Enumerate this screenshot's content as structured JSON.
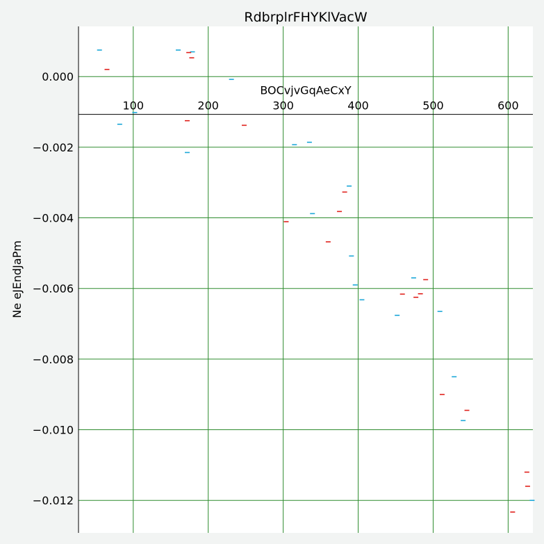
{
  "chart_data": {
    "type": "scatter",
    "title": "RdbrplrFHYKlVacW",
    "xlabel": "BOCvjvGqAeCxY",
    "ylabel": "Ne eJEndJaPm",
    "xlim": [
      27,
      633
    ],
    "ylim": [
      -0.01292,
      0.00142
    ],
    "x_axis_crosses_y": -0.00107,
    "grid": true,
    "grid_color": "#2e8b2e",
    "marker": "hline",
    "x_ticks": [
      100,
      200,
      300,
      400,
      500,
      600
    ],
    "x_tick_labels": [
      "100",
      "200",
      "300",
      "400",
      "500",
      "600"
    ],
    "y_ticks": [
      0.0,
      -0.002,
      -0.004,
      -0.006,
      -0.008,
      -0.01,
      -0.012
    ],
    "y_tick_labels": [
      "0.000",
      "−0.002",
      "−0.004",
      "−0.006",
      "−0.008",
      "−0.010",
      "−0.012"
    ],
    "series": [
      {
        "color": "#1ba7d8",
        "points": [
          [
            55,
            0.00075
          ],
          [
            82,
            -0.00135
          ],
          [
            102,
            -0.00102
          ],
          [
            160,
            0.00075
          ],
          [
            172,
            -0.00215
          ],
          [
            179,
            0.0007
          ],
          [
            231,
            -8e-05
          ],
          [
            315,
            -0.00193
          ],
          [
            335,
            -0.00186
          ],
          [
            339,
            -0.00388
          ],
          [
            388,
            -0.0031
          ],
          [
            391,
            -0.00508
          ],
          [
            396,
            -0.0059
          ],
          [
            405,
            -0.00632
          ],
          [
            452,
            -0.00676
          ],
          [
            474,
            -0.0057
          ],
          [
            509,
            -0.00665
          ],
          [
            528,
            -0.0085
          ],
          [
            540,
            -0.00974
          ],
          [
            632,
            -0.012
          ]
        ]
      },
      {
        "color": "#e0201b",
        "points": [
          [
            65,
            0.0002
          ],
          [
            172,
            -0.00125
          ],
          [
            174,
            0.00068
          ],
          [
            178,
            0.00053
          ],
          [
            248,
            -0.00138
          ],
          [
            304,
            -0.00411
          ],
          [
            360,
            -0.00468
          ],
          [
            375,
            -0.00382
          ],
          [
            382,
            -0.00327
          ],
          [
            459,
            -0.00616
          ],
          [
            477,
            -0.00625
          ],
          [
            483,
            -0.00615
          ],
          [
            490,
            -0.00575
          ],
          [
            512,
            -0.009
          ],
          [
            545,
            -0.00945
          ],
          [
            606,
            -0.01233
          ],
          [
            625,
            -0.0112
          ],
          [
            626,
            -0.0116
          ]
        ]
      }
    ]
  }
}
